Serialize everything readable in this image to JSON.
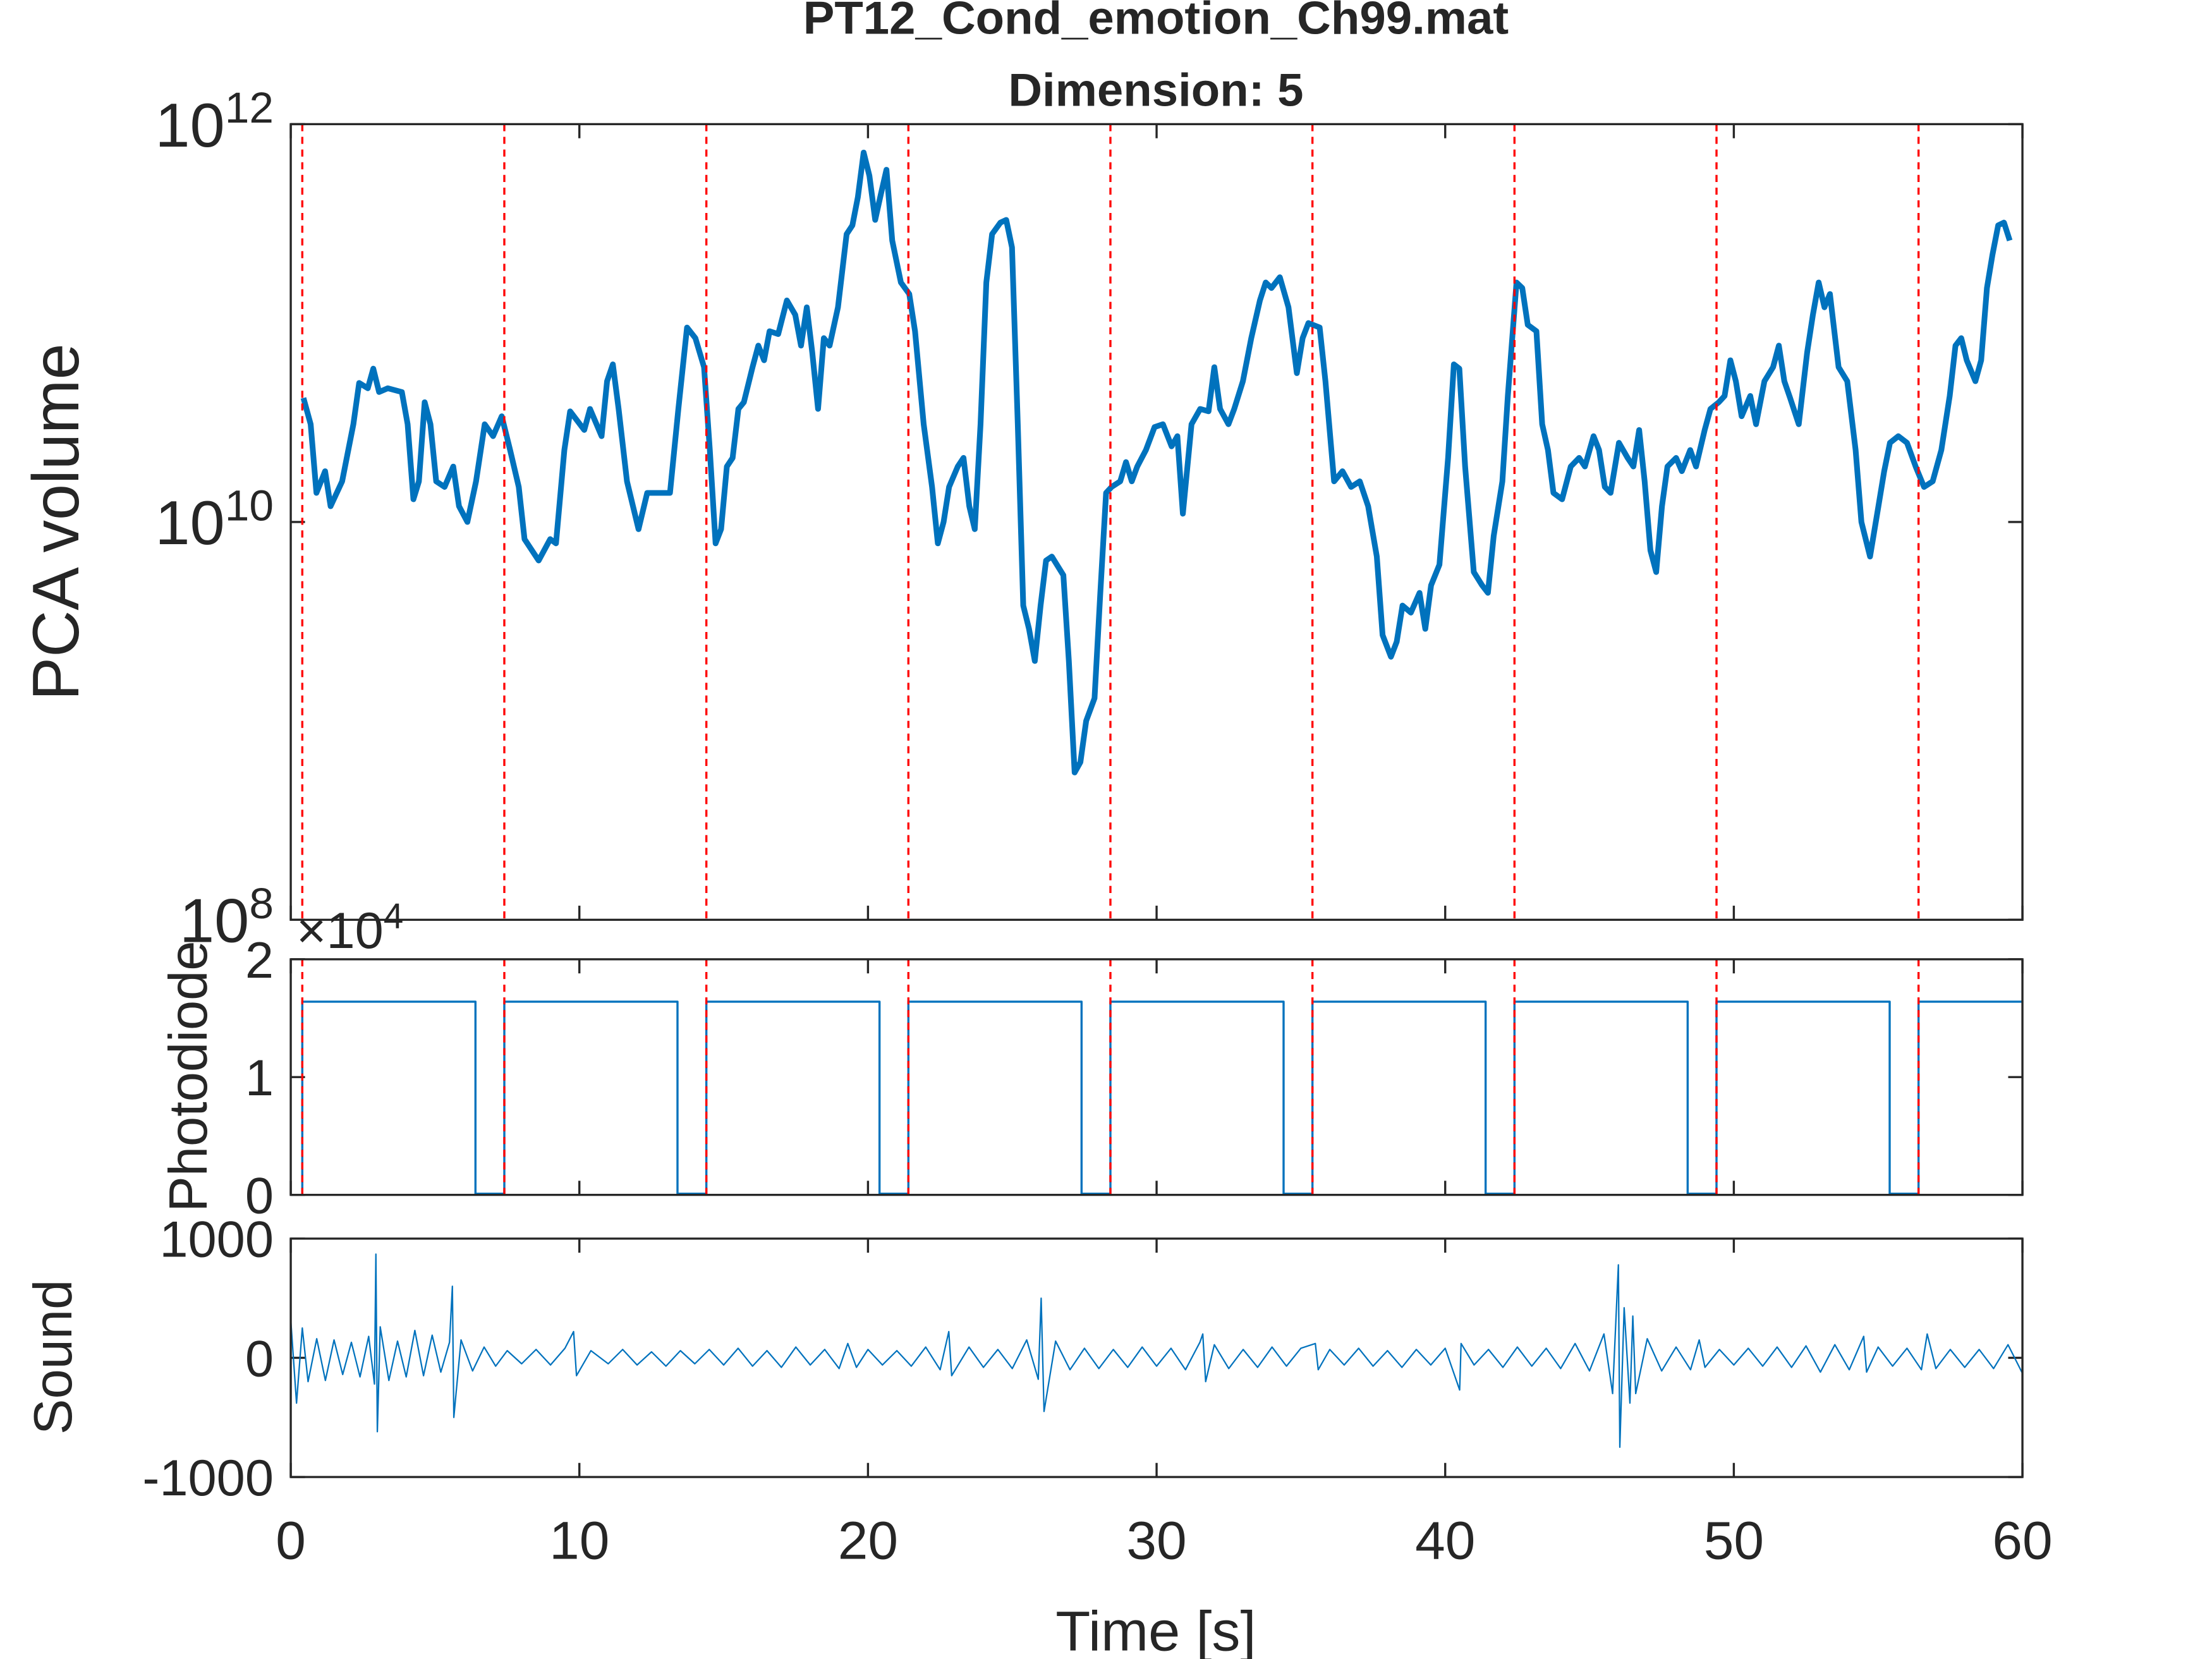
{
  "chart_data": [
    {
      "type": "line",
      "title": "PT12_Cond_emotion_Ch99.mat",
      "subtitle": "Dimension: 5",
      "ylabel": "PCA volume",
      "y_scale": "log",
      "xlim": [
        0,
        60
      ],
      "ylim": [
        100000000,
        1000000000000
      ],
      "yticks": [
        {
          "value": 100000000,
          "label": "10^8"
        },
        {
          "value": 10000000000,
          "label": "10^10"
        },
        {
          "value": 1000000000000,
          "label": "10^12"
        }
      ],
      "color": "#0072bd",
      "line_width": 4,
      "vlines": {
        "x": [
          0.4,
          7.4,
          14.4,
          21.4,
          28.4,
          35.4,
          42.4,
          49.4,
          56.4
        ],
        "color": "#ff0000"
      },
      "x": [
        0.44,
        0.69,
        0.89,
        1.19,
        1.38,
        1.78,
        2.17,
        2.37,
        2.67,
        2.86,
        3.06,
        3.36,
        3.85,
        4.05,
        4.25,
        4.44,
        4.64,
        4.84,
        5.04,
        5.33,
        5.63,
        5.83,
        6.12,
        6.42,
        6.72,
        7.01,
        7.31,
        7.6,
        7.9,
        8.1,
        8.59,
        8.99,
        9.19,
        9.48,
        9.68,
        10.17,
        10.37,
        10.77,
        10.96,
        11.16,
        11.36,
        11.65,
        12.05,
        12.35,
        12.94,
        13.14,
        13.43,
        13.73,
        14.02,
        14.32,
        14.52,
        14.72,
        14.91,
        15.11,
        15.31,
        15.51,
        15.7,
        16.0,
        16.2,
        16.4,
        16.59,
        16.89,
        17.19,
        17.48,
        17.68,
        17.88,
        18.07,
        18.27,
        18.47,
        18.67,
        18.96,
        19.26,
        19.46,
        19.65,
        19.85,
        20.05,
        20.25,
        20.44,
        20.64,
        20.84,
        21.14,
        21.43,
        21.63,
        21.93,
        22.22,
        22.42,
        22.62,
        22.81,
        23.11,
        23.31,
        23.51,
        23.7,
        23.9,
        24.1,
        24.3,
        24.59,
        24.79,
        24.99,
        25.19,
        25.38,
        25.58,
        25.78,
        25.98,
        26.17,
        26.37,
        26.77,
        26.96,
        27.16,
        27.36,
        27.56,
        27.85,
        28.05,
        28.25,
        28.44,
        28.74,
        28.94,
        29.14,
        29.33,
        29.63,
        29.93,
        30.22,
        30.52,
        30.72,
        30.91,
        31.21,
        31.51,
        31.8,
        32.0,
        32.2,
        32.49,
        32.69,
        32.99,
        33.28,
        33.58,
        33.78,
        33.98,
        34.27,
        34.57,
        34.86,
        35.06,
        35.26,
        35.65,
        35.85,
        36.15,
        36.44,
        36.74,
        37.04,
        37.33,
        37.63,
        37.83,
        38.12,
        38.32,
        38.52,
        38.81,
        39.11,
        39.31,
        39.51,
        39.8,
        40.1,
        40.3,
        40.49,
        40.69,
        40.99,
        41.28,
        41.48,
        41.68,
        41.98,
        42.17,
        42.47,
        42.67,
        42.86,
        43.16,
        43.36,
        43.56,
        43.75,
        44.05,
        44.35,
        44.64,
        44.84,
        45.14,
        45.33,
        45.53,
        45.73,
        46.02,
        46.32,
        46.52,
        46.72,
        46.91,
        47.11,
        47.31,
        47.51,
        47.7,
        48.0,
        48.2,
        48.49,
        48.69,
        48.99,
        49.19,
        49.48,
        49.68,
        49.88,
        50.07,
        50.27,
        50.57,
        50.77,
        51.06,
        51.36,
        51.56,
        51.75,
        51.95,
        52.25,
        52.54,
        52.74,
        52.94,
        53.14,
        53.33,
        53.63,
        53.93,
        54.22,
        54.42,
        54.72,
        55.01,
        55.21,
        55.41,
        55.7,
        56.0,
        56.3,
        56.59,
        56.89,
        57.19,
        57.48,
        57.68,
        57.88,
        58.07,
        58.37,
        58.57,
        58.77,
        58.96,
        59.16,
        59.36,
        59.56
      ],
      "values": [
        42000000000.0,
        31000000000.0,
        14000000000.0,
        18000000000.0,
        12000000000.0,
        16000000000.0,
        31000000000.0,
        50000000000.0,
        47000000000.0,
        59000000000.0,
        45000000000.0,
        47000000000.0,
        45000000000.0,
        31000000000.0,
        13000000000.0,
        16000000000.0,
        40000000000.0,
        31000000000.0,
        16000000000.0,
        15000000000.0,
        19000000000.0,
        12000000000.0,
        10000000000.0,
        16000000000.0,
        31000000000.0,
        27000000000.0,
        34000000000.0,
        23000000000.0,
        15000000000.0,
        8200000000.0,
        6400000000.0,
        8200000000.0,
        7800000000.0,
        23000000000.0,
        36000000000.0,
        29000000000.0,
        37000000000.0,
        27000000000.0,
        51000000000.0,
        62000000000.0,
        37000000000.0,
        16000000000.0,
        9200000000.0,
        14000000000.0,
        14000000000.0,
        14000000000.0,
        37000000000.0,
        95000000000.0,
        84000000000.0,
        60000000000.0,
        23000000000.0,
        7800000000.0,
        9200000000.0,
        19000000000.0,
        21000000000.0,
        37000000000.0,
        40000000000.0,
        60000000000.0,
        77000000000.0,
        65000000000.0,
        91000000000.0,
        88000000000.0,
        130000000000.0,
        110000000000.0,
        77000000000.0,
        120000000000.0,
        71000000000.0,
        37000000000.0,
        84000000000.0,
        77000000000.0,
        120000000000.0,
        280000000000.0,
        310000000000.0,
        430000000000.0,
        720000000000.0,
        550000000000.0,
        330000000000.0,
        440000000000.0,
        590000000000.0,
        260000000000.0,
        160000000000.0,
        140000000000.0,
        91000000000.0,
        31000000000.0,
        15000000000.0,
        7800000000.0,
        10000000000.0,
        15000000000.0,
        19000000000.0,
        21000000000.0,
        12000000000.0,
        9200000000.0,
        31000000000.0,
        160000000000.0,
        280000000000.0,
        320000000000.0,
        330000000000.0,
        240000000000.0,
        31000000000.0,
        3800000000.0,
        2900000000.0,
        2000000000.0,
        3800000000.0,
        6400000000.0,
        6700000000.0,
        5400000000.0,
        2000000000.0,
        550000000.0,
        620000000.0,
        1000000000.0,
        1300000000.0,
        4400000000.0,
        14000000000.0,
        15000000000.0,
        16000000000.0,
        20000000000.0,
        16000000000.0,
        19000000000.0,
        23000000000.0,
        30000000000.0,
        31000000000.0,
        24000000000.0,
        27000000000.0,
        11000000000.0,
        31000000000.0,
        37000000000.0,
        36000000000.0,
        60000000000.0,
        37000000000.0,
        31000000000.0,
        37000000000.0,
        51000000000.0,
        84000000000.0,
        130000000000.0,
        160000000000.0,
        150000000000.0,
        170000000000.0,
        120000000000.0,
        56000000000.0,
        84000000000.0,
        100000000000.0,
        95000000000.0,
        51000000000.0,
        16000000000.0,
        18000000000.0,
        15000000000.0,
        16000000000.0,
        12000000000.0,
        6700000000.0,
        2700000000.0,
        2100000000.0,
        2500000000.0,
        3800000000.0,
        3500000000.0,
        4400000000.0,
        2900000000.0,
        4800000000.0,
        6100000000.0,
        21000000000.0,
        62000000000.0,
        59000000000.0,
        19000000000.0,
        5600000000.0,
        4800000000.0,
        4400000000.0,
        8500000000.0,
        16000000000.0,
        43000000000.0,
        160000000000.0,
        150000000000.0,
        98000000000.0,
        91000000000.0,
        31000000000.0,
        23000000000.0,
        14000000000.0,
        13000000000.0,
        19000000000.0,
        21000000000.0,
        19000000000.0,
        27000000000.0,
        23000000000.0,
        15000000000.0,
        14000000000.0,
        25000000000.0,
        21000000000.0,
        19000000000.0,
        29000000000.0,
        16000000000.0,
        7200000000.0,
        5600000000.0,
        12000000000.0,
        19000000000.0,
        21000000000.0,
        18000000000.0,
        23000000000.0,
        19000000000.0,
        29000000000.0,
        37000000000.0,
        40000000000.0,
        43000000000.0,
        65000000000.0,
        51000000000.0,
        34000000000.0,
        43000000000.0,
        31000000000.0,
        51000000000.0,
        60000000000.0,
        77000000000.0,
        51000000000.0,
        42000000000.0,
        31000000000.0,
        71000000000.0,
        110000000000.0,
        160000000000.0,
        120000000000.0,
        140000000000.0,
        60000000000.0,
        51000000000.0,
        23000000000.0,
        10000000000.0,
        6700000000.0,
        12000000000.0,
        18000000000.0,
        25000000000.0,
        27000000000.0,
        25000000000.0,
        19000000000.0,
        15000000000.0,
        16000000000.0,
        23000000000.0,
        43000000000.0,
        77000000000.0,
        84000000000.0,
        65000000000.0,
        51000000000.0,
        65000000000.0,
        150000000000.0,
        220000000000.0,
        310000000000.0,
        320000000000.0,
        260000000000.0
      ]
    },
    {
      "type": "line",
      "ylabel": "Photodiode",
      "y_exponent_label": "×10^4",
      "xlim": [
        0,
        60
      ],
      "ylim": [
        0,
        20000
      ],
      "yticks": [
        0,
        {
          "value": 10000,
          "label": "1"
        },
        {
          "value": 20000,
          "label": "2"
        }
      ],
      "color": "#0072bd",
      "line_width": 1.5,
      "vlines": {
        "x": [
          0.4,
          7.4,
          14.4,
          21.4,
          28.4,
          35.4,
          42.4,
          49.4,
          56.4
        ],
        "color": "#ff0000"
      },
      "x": [
        0.4,
        0.4,
        6.4,
        6.4,
        7.4,
        7.4,
        13.4,
        13.4,
        14.4,
        14.4,
        20.4,
        20.4,
        21.4,
        21.4,
        27.4,
        27.4,
        28.4,
        28.4,
        34.4,
        34.4,
        35.4,
        35.4,
        41.4,
        41.4,
        42.4,
        42.4,
        48.4,
        48.4,
        49.4,
        49.4,
        55.4,
        55.4,
        56.4,
        56.4,
        60
      ],
      "values": [
        100,
        16400,
        16400,
        100,
        100,
        16400,
        16400,
        100,
        100,
        16400,
        16400,
        100,
        100,
        16400,
        16400,
        100,
        100,
        16400,
        16400,
        100,
        100,
        16400,
        16400,
        100,
        100,
        16400,
        16400,
        100,
        100,
        16400,
        16400,
        100,
        100,
        16400,
        16400
      ]
    },
    {
      "type": "line",
      "ylabel": "Sound",
      "xlabel": "Time [s]",
      "xlim": [
        0,
        60
      ],
      "xticks": [
        0,
        10,
        20,
        30,
        40,
        50,
        60
      ],
      "ylim": [
        -1000,
        1000
      ],
      "yticks": [
        -1000,
        0,
        1000
      ],
      "color": "#0072bd",
      "line_width": 1,
      "x": [
        0,
        0.2,
        0.4,
        0.6,
        0.9,
        1.2,
        1.5,
        1.8,
        2.1,
        2.4,
        2.7,
        2.9,
        2.95,
        3.0,
        3.1,
        3.4,
        3.7,
        4.0,
        4.3,
        4.6,
        4.9,
        5.2,
        5.5,
        5.6,
        5.65,
        5.9,
        6.3,
        6.7,
        7.1,
        7.5,
        8.0,
        8.5,
        9.0,
        9.5,
        9.8,
        9.9,
        10.4,
        11,
        11.5,
        12,
        12.5,
        13,
        13.5,
        14,
        14.5,
        15,
        15.5,
        16,
        16.5,
        17,
        17.5,
        18,
        18.5,
        19,
        19.3,
        19.6,
        20,
        20.5,
        21,
        21.5,
        22,
        22.5,
        22.8,
        22.9,
        23.5,
        24,
        24.5,
        25,
        25.5,
        25.9,
        26.0,
        26.1,
        26.5,
        27,
        27.5,
        28,
        28.5,
        29,
        29.5,
        30,
        30.5,
        31,
        31.5,
        31.6,
        31.7,
        32,
        32.5,
        33,
        33.5,
        34,
        34.5,
        35,
        35.5,
        35.6,
        36,
        36.5,
        37,
        37.5,
        38,
        38.5,
        39,
        39.5,
        40,
        40.5,
        40.55,
        41,
        41.5,
        42,
        42.5,
        43,
        43.5,
        44,
        44.5,
        45,
        45.5,
        45.8,
        46.0,
        46.05,
        46.2,
        46.4,
        46.5,
        46.6,
        47,
        47.5,
        48,
        48.5,
        48.8,
        49,
        49.5,
        50,
        50.5,
        51,
        51.5,
        52,
        52.5,
        53,
        53.5,
        54,
        54.5,
        54.6,
        55,
        55.5,
        56,
        56.5,
        56.7,
        57,
        57.5,
        58,
        58.5,
        59,
        59.5,
        60
      ],
      "values": [
        320,
        -380,
        250,
        -200,
        160,
        -190,
        150,
        -140,
        130,
        -160,
        180,
        -220,
        870,
        -620,
        260,
        -190,
        140,
        -160,
        230,
        -150,
        190,
        -120,
        130,
        600,
        -500,
        150,
        -110,
        90,
        -70,
        60,
        -50,
        70,
        -60,
        80,
        220,
        -150,
        60,
        -50,
        70,
        -60,
        50,
        -70,
        60,
        -50,
        70,
        -60,
        80,
        -70,
        60,
        -80,
        90,
        -60,
        70,
        -90,
        120,
        -80,
        70,
        -60,
        60,
        -70,
        90,
        -100,
        220,
        -150,
        90,
        -80,
        70,
        -90,
        150,
        -180,
        500,
        -450,
        140,
        -100,
        80,
        -90,
        70,
        -80,
        90,
        -70,
        80,
        -100,
        130,
        200,
        -200,
        110,
        -90,
        70,
        -80,
        90,
        -70,
        80,
        120,
        -100,
        70,
        -60,
        80,
        -70,
        60,
        -80,
        70,
        -60,
        80,
        -270,
        120,
        -60,
        70,
        -80,
        90,
        -70,
        80,
        -90,
        120,
        -110,
        200,
        -300,
        780,
        -750,
        420,
        -380,
        350,
        -300,
        160,
        -110,
        90,
        -100,
        150,
        -80,
        70,
        -60,
        80,
        -70,
        90,
        -80,
        100,
        -120,
        110,
        -100,
        180,
        -120,
        90,
        -70,
        80,
        -100,
        200,
        -90,
        70,
        -80,
        70,
        -90,
        110,
        -130
      ]
    }
  ]
}
